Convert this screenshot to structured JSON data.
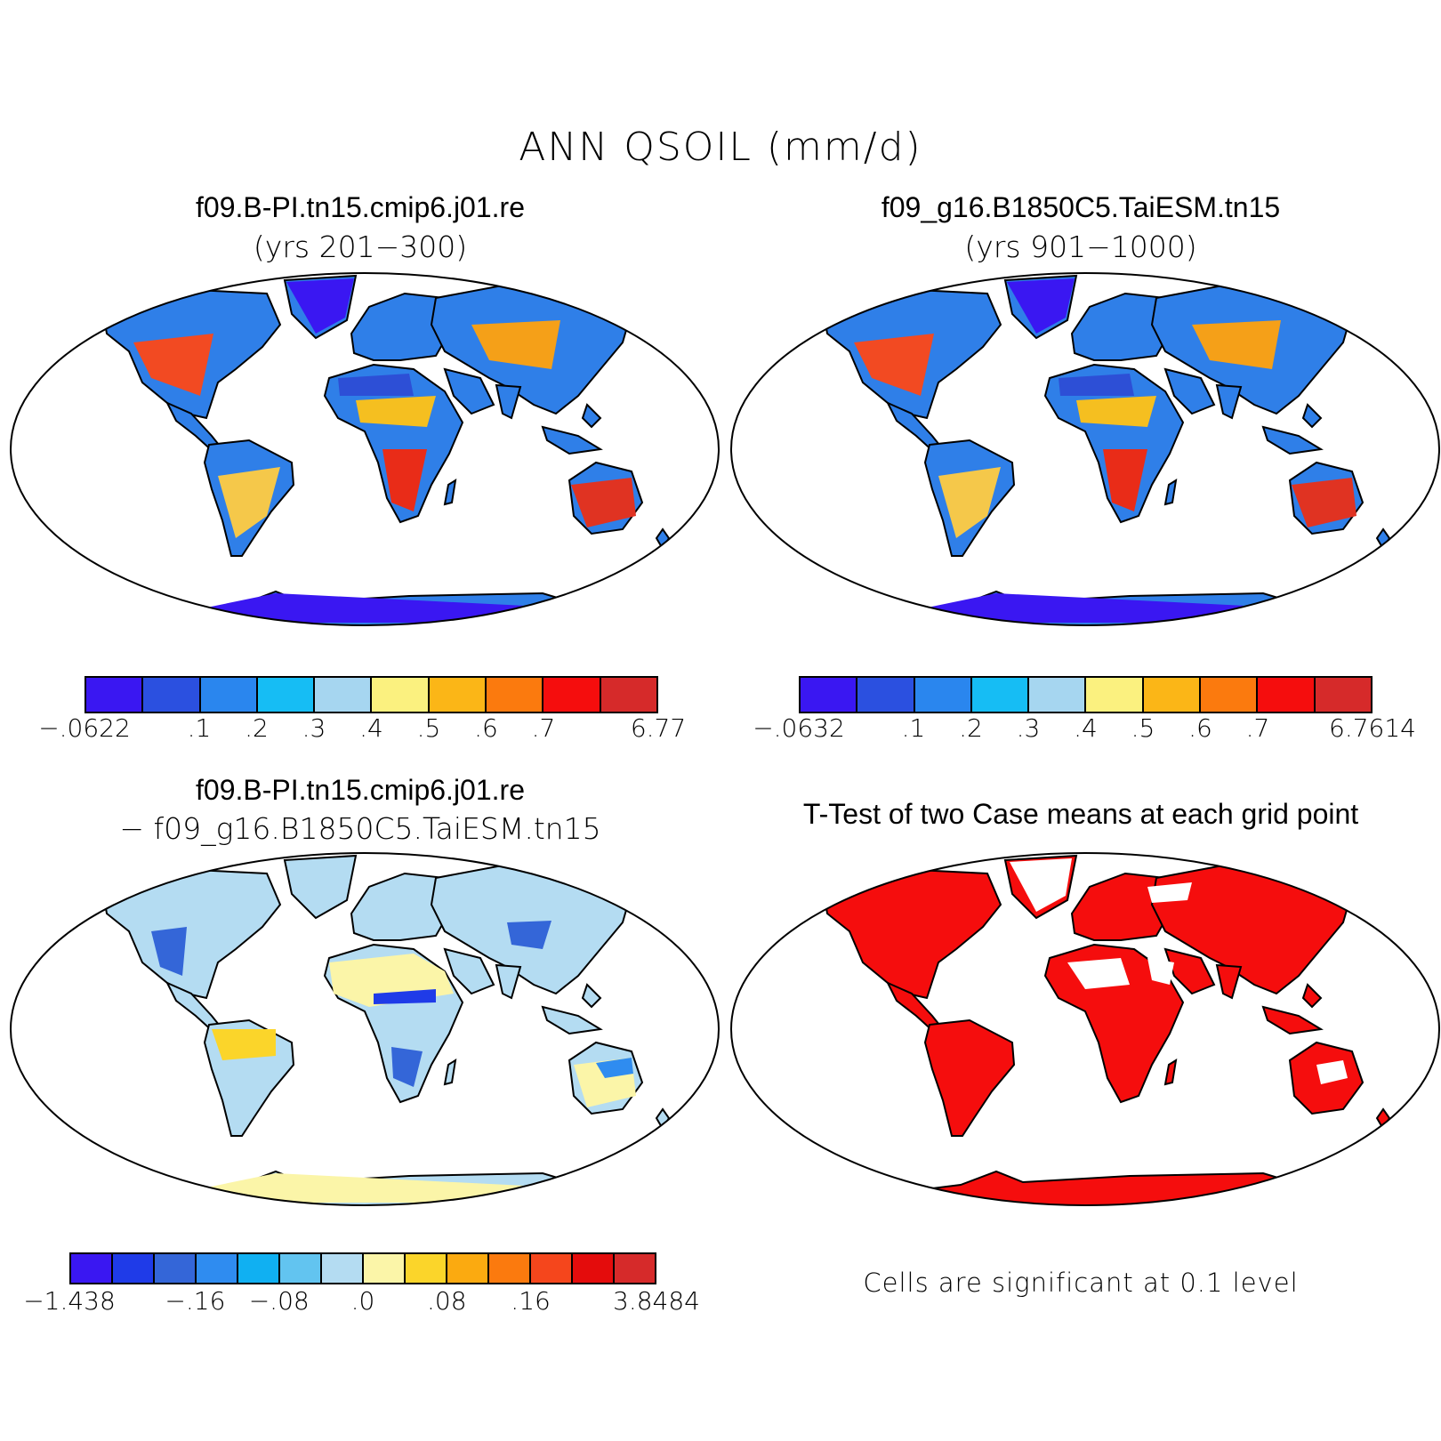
{
  "figure": {
    "title": "ANN QSOIL (mm/d)"
  },
  "panels": {
    "case1": {
      "title": "f09.B-PI.tn15.cmip6.j01.re",
      "subtitle": "(yrs 201−300)",
      "colorbar": {
        "colors": [
          "#3a17f2",
          "#2b50e0",
          "#2a86ee",
          "#16bdf4",
          "#a6d6f0",
          "#fbf17f",
          "#fbb617",
          "#fb7a0e",
          "#f50d0d",
          "#d62a2a"
        ],
        "ticks": [
          "−.0622",
          ".1",
          ".2",
          ".3",
          ".4",
          ".5",
          ".6",
          ".7",
          "6.77"
        ]
      }
    },
    "case2": {
      "title": "f09_g16.B1850C5.TaiESM.tn15",
      "subtitle": "(yrs 901−1000)",
      "colorbar": {
        "colors": [
          "#3a17f2",
          "#2b50e0",
          "#2a86ee",
          "#16bdf4",
          "#a6d6f0",
          "#fbf17f",
          "#fbb617",
          "#fb7a0e",
          "#f50d0d",
          "#d62a2a"
        ],
        "ticks": [
          "−.0632",
          ".1",
          ".2",
          ".3",
          ".4",
          ".5",
          ".6",
          ".7",
          "6.7614"
        ]
      }
    },
    "diff": {
      "title": "f09.B-PI.tn15.cmip6.j01.re",
      "subtitle": "− f09_g16.B1850C5.TaiESM.tn15",
      "colorbar": {
        "colors": [
          "#3a17f2",
          "#1f3be8",
          "#3466d8",
          "#2f8cf0",
          "#10b0f2",
          "#62c4f0",
          "#b4dcf2",
          "#fbf5a8",
          "#fbd52a",
          "#fbaa10",
          "#fb7a0e",
          "#f5461c",
          "#e40c0c",
          "#d62a2a"
        ],
        "ticks": [
          "−1.438",
          "−.16",
          "−.08",
          ".0",
          ".08",
          ".16",
          "3.8484"
        ]
      }
    },
    "ttest": {
      "title": "T-Test of two Case means at each grid point",
      "note": "Cells are significant at 0.1 level",
      "fill_color": "#f50d0d"
    }
  }
}
